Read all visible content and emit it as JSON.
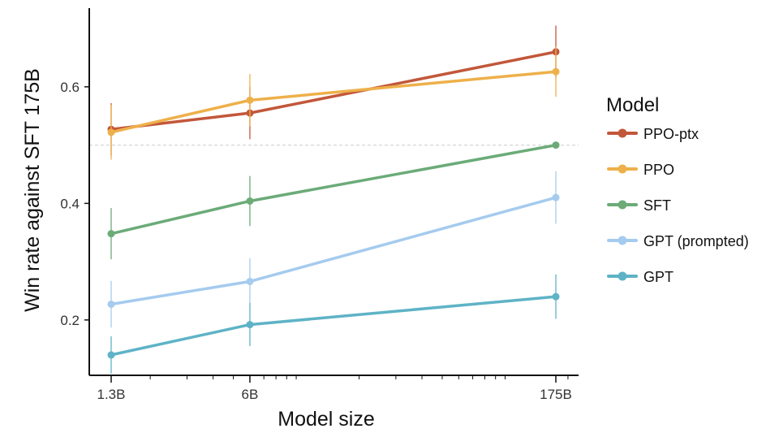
{
  "chart_data": {
    "type": "line",
    "xlabel": "Model size",
    "ylabel": "Win rate against SFT 175B",
    "x_scale": "log",
    "x": [
      "1.3B",
      "6B",
      "175B"
    ],
    "x_values": [
      1.3,
      6,
      175
    ],
    "xlim": [
      1.2,
      210
    ],
    "ylim": [
      0.105,
      0.735
    ],
    "yticks": [
      0.2,
      0.4,
      0.6
    ],
    "ytick_labels": [
      "0.2",
      "0.4",
      "0.6"
    ],
    "reference_line": 0.5,
    "grid": false,
    "legend_title": "Model",
    "legend_position": "right",
    "series": [
      {
        "name": "PPO-ptx",
        "color": "#c2573a",
        "values": [
          0.527,
          0.555,
          0.66
        ],
        "err": [
          0.045,
          0.045,
          0.045
        ]
      },
      {
        "name": "PPO",
        "color": "#eeb04a",
        "values": [
          0.522,
          0.577,
          0.626
        ],
        "err": [
          0.047,
          0.045,
          0.043
        ]
      },
      {
        "name": "SFT",
        "color": "#6bab78",
        "values": [
          0.348,
          0.404,
          0.5
        ],
        "err": [
          0.044,
          0.043,
          0.0
        ]
      },
      {
        "name": "GPT (prompted)",
        "color": "#a5cbee",
        "values": [
          0.227,
          0.266,
          0.41
        ],
        "err": [
          0.04,
          0.04,
          0.045
        ]
      },
      {
        "name": "GPT",
        "color": "#5eb3c6",
        "values": [
          0.14,
          0.192,
          0.24
        ],
        "err": [
          0.032,
          0.037,
          0.038
        ]
      }
    ]
  }
}
